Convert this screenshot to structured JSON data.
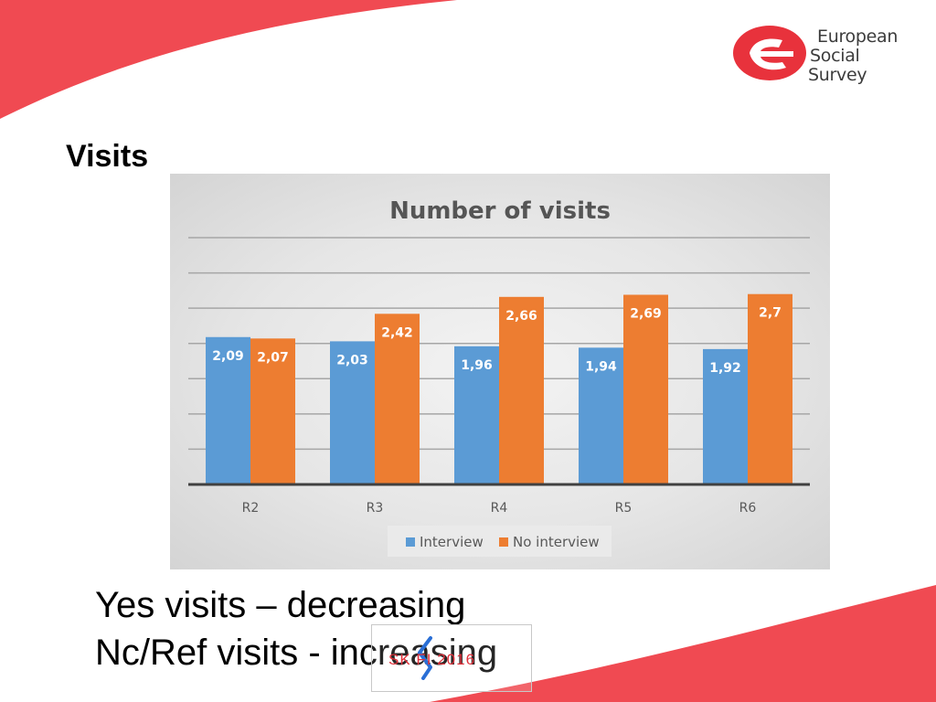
{
  "logo": {
    "line1": "European",
    "line2": "Social",
    "line3": "Survey"
  },
  "slide_title": "Visits",
  "bullets": [
    "Yes visits – decreasing",
    "Nc/Ref visits - increasing"
  ],
  "stamp": {
    "text": "SK    FI 2016"
  },
  "colors": {
    "brand_red": "#f04a52",
    "interview": "#5b9bd5",
    "no_interview": "#ed7d31"
  },
  "chart_data": {
    "type": "bar",
    "title": "Number of visits",
    "categories": [
      "R2",
      "R3",
      "R4",
      "R5",
      "R6"
    ],
    "series": [
      {
        "name": "Interview",
        "values": [
          2.09,
          2.03,
          1.96,
          1.94,
          1.92
        ],
        "labels": [
          "2,09",
          "2,03",
          "1,96",
          "1,94",
          "1,92"
        ]
      },
      {
        "name": "No interview",
        "values": [
          2.07,
          2.42,
          2.66,
          2.69,
          2.7
        ],
        "labels": [
          "2,07",
          "2,42",
          "2,66",
          "2,69",
          "2,7"
        ]
      }
    ],
    "ylim": [
      0,
      3.5
    ],
    "y_gridlines": [
      0.5,
      1,
      1.5,
      2,
      2.5,
      3,
      3.5
    ],
    "grid": true,
    "legend_position": "bottom",
    "xlabel": "",
    "ylabel": ""
  }
}
